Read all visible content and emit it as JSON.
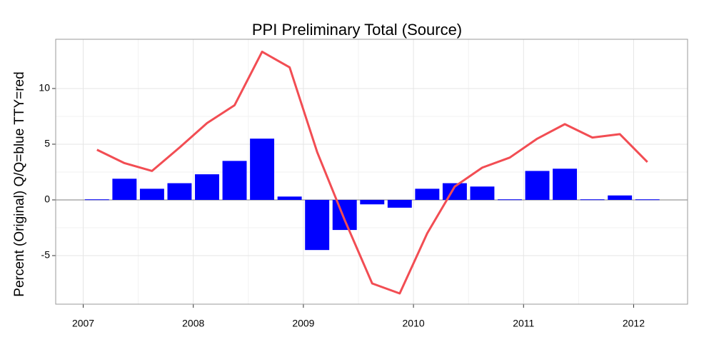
{
  "chart_data": {
    "type": "bar",
    "title": "PPI Preliminary Total (Source)",
    "ylabel": "Percent (Original) Q/Q=blue TTY=red",
    "x": [
      2007.125,
      2007.375,
      2007.625,
      2007.875,
      2008.125,
      2008.375,
      2008.625,
      2008.875,
      2009.125,
      2009.375,
      2009.625,
      2009.875,
      2010.125,
      2010.375,
      2010.625,
      2010.875,
      2011.125,
      2011.375,
      2011.625,
      2011.875,
      2012.125
    ],
    "series": [
      {
        "type": "bar",
        "color": "#0000ff",
        "values": [
          0.05,
          1.9,
          1.0,
          1.5,
          2.3,
          3.5,
          5.5,
          0.3,
          -4.5,
          -2.7,
          -0.4,
          -0.7,
          1.0,
          1.5,
          1.2,
          0.05,
          2.6,
          2.8,
          0.05,
          0.4,
          0.05
        ]
      },
      {
        "type": "line",
        "color": "#f24d53",
        "values": [
          4.5,
          3.3,
          2.6,
          4.7,
          6.9,
          8.5,
          13.3,
          11.9,
          4.3,
          -1.8,
          -7.5,
          -8.4,
          -3.0,
          1.2,
          2.9,
          3.8,
          5.5,
          6.8,
          5.6,
          5.9,
          3.4
        ]
      }
    ],
    "xlim": [
      2006.75,
      2012.49
    ],
    "xticks": [
      2007,
      2008,
      2009,
      2010,
      2011,
      2012
    ],
    "ylim": [
      -9.36,
      14.42
    ],
    "yticks": [
      -5,
      0,
      5,
      10
    ],
    "grid": true
  }
}
